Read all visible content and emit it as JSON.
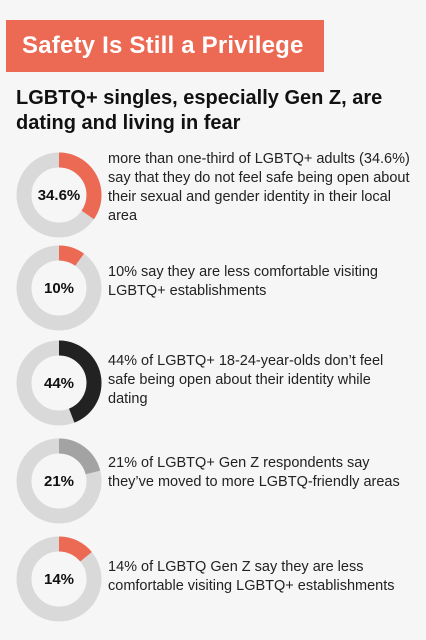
{
  "banner": {
    "title": "Safety Is Still a Privilege"
  },
  "headline": "LGBTQ+ singles, especially Gen Z, are dating and living in fear",
  "colors": {
    "accent": "#ec6a53",
    "track": "#d9d9d9",
    "dark": "#222222",
    "grey": "#a3a3a3"
  },
  "chart_data": [
    {
      "type": "pie",
      "label": "34.6%",
      "value": 34.6,
      "color": "#ec6a53",
      "text": "more than one-third of LGBTQ+ adults (34.6%) say that they do not feel safe being open about their sexual and gender identity in their local area"
    },
    {
      "type": "pie",
      "label": "10%",
      "value": 10,
      "color": "#ec6a53",
      "text": "10% say they are less comfortable visiting LGBTQ+ establishments"
    },
    {
      "type": "pie",
      "label": "44%",
      "value": 44,
      "color": "#222222",
      "text": "44% of LGBTQ+ 18-24-year-olds don’t feel safe being open about their identity while dating"
    },
    {
      "type": "pie",
      "label": "21%",
      "value": 21,
      "color": "#a3a3a3",
      "text": "21% of LGBTQ+ Gen Z respondents say they’ve moved to more LGBTQ-friendly areas"
    },
    {
      "type": "pie",
      "label": "14%",
      "value": 14,
      "color": "#ec6a53",
      "text": "14% of LGBTQ Gen Z say they are less comfortable visiting LGBTQ+ establishments"
    }
  ]
}
